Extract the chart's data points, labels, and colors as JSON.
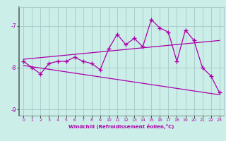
{
  "title": "",
  "xlabel": "Windchill (Refroidissement éolien,°C)",
  "bg_color": "#cceee8",
  "line_color": "#aa00aa",
  "grid_color": "#aacccc",
  "spine_color": "#556666",
  "xlim": [
    -0.5,
    23.5
  ],
  "ylim": [
    -9.15,
    -6.55
  ],
  "yticks": [
    -9,
    -8,
    -7
  ],
  "xticks": [
    0,
    1,
    2,
    3,
    4,
    5,
    6,
    7,
    8,
    9,
    10,
    11,
    12,
    13,
    14,
    15,
    16,
    17,
    18,
    19,
    20,
    21,
    22,
    23
  ],
  "hours": [
    0,
    1,
    2,
    3,
    4,
    5,
    6,
    7,
    8,
    9,
    10,
    11,
    12,
    13,
    14,
    15,
    16,
    17,
    18,
    19,
    20,
    21,
    22,
    23
  ],
  "windchill": [
    -7.85,
    -8.0,
    -8.15,
    -7.9,
    -7.85,
    -7.85,
    -7.75,
    -7.85,
    -7.9,
    -8.05,
    -7.55,
    -7.2,
    -7.45,
    -7.3,
    -7.5,
    -6.85,
    -7.05,
    -7.15,
    -7.85,
    -7.1,
    -7.35,
    -8.0,
    -8.2,
    -8.6
  ],
  "trend1_x": [
    0,
    23
  ],
  "trend1_y": [
    -7.8,
    -7.35
  ],
  "trend2_x": [
    0,
    23
  ],
  "trend2_y": [
    -7.95,
    -8.65
  ]
}
